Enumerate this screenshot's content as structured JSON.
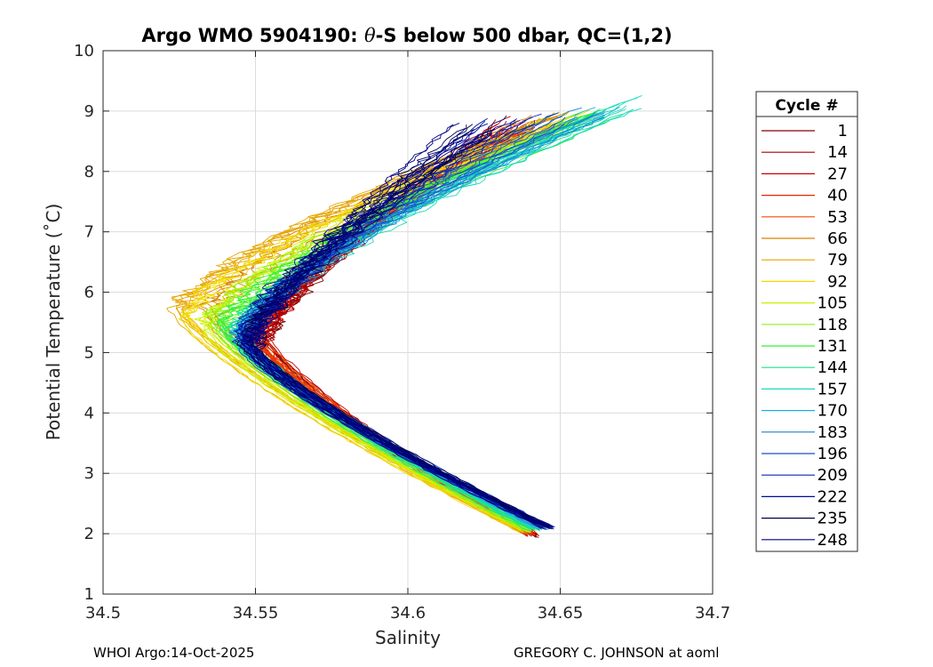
{
  "chart_data": {
    "type": "line",
    "title_prefix": "Argo WMO 5904190: ",
    "title_theta": "θ",
    "title_suffix": "-S below 500 dbar,  QC=(1,2)",
    "xlabel": "Salinity",
    "ylabel": "Potential Temperature (˚C)",
    "xlim": [
      34.5,
      34.7
    ],
    "ylim": [
      1,
      10
    ],
    "xticks": [
      "34.5",
      "34.55",
      "34.6",
      "34.65",
      "34.7"
    ],
    "yticks": [
      "1",
      "2",
      "3",
      "4",
      "5",
      "6",
      "7",
      "8",
      "9",
      "10"
    ],
    "grid": true,
    "legend_title": "Cycle #",
    "legend_placement": "right-outside",
    "series": [
      {
        "name": "1",
        "color": "#800000",
        "s_min": 34.5525,
        "t_min": 5.15,
        "s_deep": 34.642,
        "t_deep": 1.95,
        "s_top": 34.633,
        "t_top": 8.7
      },
      {
        "name": "14",
        "color": "#a60000",
        "s_min": 34.5515,
        "t_min": 5.2,
        "s_deep": 34.641,
        "t_deep": 1.97,
        "s_top": 34.635,
        "t_top": 8.75
      },
      {
        "name": "27",
        "color": "#cc0000",
        "s_min": 34.551,
        "t_min": 5.25,
        "s_deep": 34.641,
        "t_deep": 1.98,
        "s_top": 34.636,
        "t_top": 8.8
      },
      {
        "name": "40",
        "color": "#e62600",
        "s_min": 34.55,
        "t_min": 5.3,
        "s_deep": 34.64,
        "t_deep": 2.0,
        "s_top": 34.64,
        "t_top": 8.75
      },
      {
        "name": "53",
        "color": "#f24d00",
        "s_min": 34.549,
        "t_min": 5.35,
        "s_deep": 34.64,
        "t_deep": 2.0,
        "s_top": 34.642,
        "t_top": 8.8
      },
      {
        "name": "66",
        "color": "#d98000",
        "s_min": 34.535,
        "t_min": 5.6,
        "s_deep": 34.639,
        "t_deep": 2.02,
        "s_top": 34.645,
        "t_top": 8.85
      },
      {
        "name": "79",
        "color": "#e6a600",
        "s_min": 34.525,
        "t_min": 5.7,
        "s_deep": 34.638,
        "t_deep": 2.03,
        "s_top": 34.65,
        "t_top": 8.9
      },
      {
        "name": "92",
        "color": "#f2d900",
        "s_min": 34.528,
        "t_min": 5.65,
        "s_deep": 34.638,
        "t_deep": 2.04,
        "s_top": 34.655,
        "t_top": 8.9
      },
      {
        "name": "105",
        "color": "#ccf200",
        "s_min": 34.533,
        "t_min": 5.5,
        "s_deep": 34.639,
        "t_deep": 2.05,
        "s_top": 34.652,
        "t_top": 8.85
      },
      {
        "name": "118",
        "color": "#8cf21a",
        "s_min": 34.537,
        "t_min": 5.45,
        "s_deep": 34.64,
        "t_deep": 2.05,
        "s_top": 34.66,
        "t_top": 8.9
      },
      {
        "name": "131",
        "color": "#33f233",
        "s_min": 34.54,
        "t_min": 5.4,
        "s_deep": 34.641,
        "t_deep": 2.06,
        "s_top": 34.662,
        "t_top": 8.95
      },
      {
        "name": "144",
        "color": "#1ae680",
        "s_min": 34.542,
        "t_min": 5.35,
        "s_deep": 34.642,
        "t_deep": 2.06,
        "s_top": 34.665,
        "t_top": 9.0
      },
      {
        "name": "157",
        "color": "#1ad9bf",
        "s_min": 34.544,
        "t_min": 5.3,
        "s_deep": 34.643,
        "t_deep": 2.07,
        "s_top": 34.672,
        "t_top": 9.15
      },
      {
        "name": "170",
        "color": "#1ab3d9",
        "s_min": 34.545,
        "t_min": 5.25,
        "s_deep": 34.644,
        "t_deep": 2.08,
        "s_top": 34.666,
        "t_top": 9.0
      },
      {
        "name": "183",
        "color": "#1a80cc",
        "s_min": 34.546,
        "t_min": 5.25,
        "s_deep": 34.645,
        "t_deep": 2.08,
        "s_top": 34.66,
        "t_top": 8.95
      },
      {
        "name": "196",
        "color": "#1a4dcc",
        "s_min": 34.546,
        "t_min": 5.2,
        "s_deep": 34.646,
        "t_deep": 2.09,
        "s_top": 34.65,
        "t_top": 8.9
      },
      {
        "name": "209",
        "color": "#0d26b3",
        "s_min": 34.547,
        "t_min": 5.2,
        "s_deep": 34.646,
        "t_deep": 2.09,
        "s_top": 34.64,
        "t_top": 8.85
      },
      {
        "name": "222",
        "color": "#000d99",
        "s_min": 34.547,
        "t_min": 5.15,
        "s_deep": 34.647,
        "t_deep": 2.1,
        "s_top": 34.63,
        "t_top": 8.8
      },
      {
        "name": "235",
        "color": "#00004d",
        "s_min": 34.548,
        "t_min": 5.1,
        "s_deep": 34.647,
        "t_deep": 2.1,
        "s_top": 34.625,
        "t_top": 8.75
      },
      {
        "name": "248",
        "color": "#000080",
        "s_min": 34.548,
        "t_min": 5.1,
        "s_deep": 34.646,
        "t_deep": 2.1,
        "s_top": 34.62,
        "t_top": 8.7
      }
    ]
  },
  "footer": {
    "left": "WHOI Argo:14-Oct-2025",
    "right": "GREGORY C. JOHNSON at aoml"
  }
}
